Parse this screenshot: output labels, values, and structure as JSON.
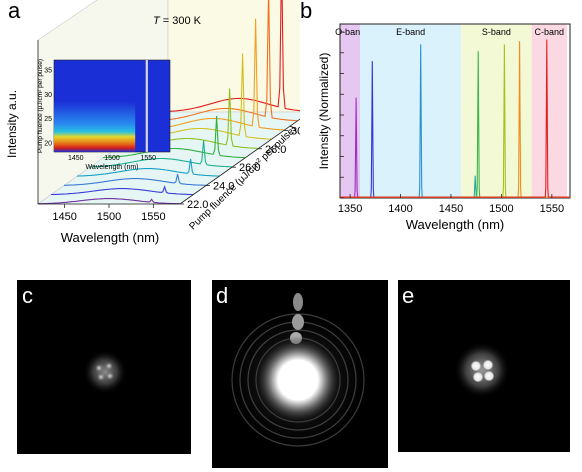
{
  "panels": {
    "a": {
      "letter": "a",
      "temperature_prefix": "T",
      "temperature_suffix": " = 300 K",
      "inset_y_ticks": [
        "35",
        "30",
        "25",
        "20"
      ],
      "inset_x_ticks": [
        "1450",
        "1500",
        "1550"
      ]
    },
    "b": {
      "letter": "b"
    },
    "c": {
      "letter": "c"
    },
    "d": {
      "letter": "d"
    },
    "e": {
      "letter": "e"
    }
  },
  "chart_data": [
    {
      "type": "line",
      "panel": "a",
      "title": "",
      "xlabel": "Wavelength (nm)",
      "ylabel": "Intensity a.u.",
      "zlabel": "Pump fluence (μJ/cm² per pulse)",
      "xlim": [
        1420,
        1580
      ],
      "x_ticks": [
        1450,
        1500,
        1550
      ],
      "z_ticks": [
        22.0,
        24.0,
        26.0,
        28.0,
        30.0,
        32.0
      ],
      "z_tick_labels": [
        "22.0",
        "24.0",
        "26.0",
        "28.0",
        "30.0",
        "32.0"
      ],
      "peak_wavelength": 1548,
      "series": [
        {
          "pump_fluence": 22.0,
          "peak_height": 0.02,
          "color": "#7030a0"
        },
        {
          "pump_fluence": 23.0,
          "peak_height": 0.04,
          "color": "#3b3bd8"
        },
        {
          "pump_fluence": 24.0,
          "peak_height": 0.06,
          "color": "#3a7bd5"
        },
        {
          "pump_fluence": 25.0,
          "peak_height": 0.1,
          "color": "#1aa0c8"
        },
        {
          "pump_fluence": 26.0,
          "peak_height": 0.16,
          "color": "#20b090"
        },
        {
          "pump_fluence": 27.0,
          "peak_height": 0.26,
          "color": "#30b040"
        },
        {
          "pump_fluence": 28.0,
          "peak_height": 0.38,
          "color": "#90c020"
        },
        {
          "pump_fluence": 29.0,
          "peak_height": 0.55,
          "color": "#d0c020"
        },
        {
          "pump_fluence": 30.0,
          "peak_height": 0.72,
          "color": "#f0a020"
        },
        {
          "pump_fluence": 31.0,
          "peak_height": 0.86,
          "color": "#f07020"
        },
        {
          "pump_fluence": 32.0,
          "peak_height": 1.0,
          "color": "#e02020"
        }
      ],
      "inset": {
        "type": "heatmap",
        "xlabel": "Wavelength (nm)",
        "ylabel": "Pump fluence (μJ/cm² per pulse)",
        "x_ticks": [
          1450,
          1500,
          1550
        ],
        "y_ticks": [
          20,
          25,
          30,
          35
        ],
        "xlim": [
          1420,
          1580
        ],
        "ylim": [
          18,
          37
        ],
        "lasing_line_wavelength": 1548
      }
    },
    {
      "type": "line",
      "panel": "b",
      "title": "",
      "xlabel": "Wavelength (nm)",
      "ylabel": "Intensity (Normalized)",
      "xlim": [
        1340,
        1568
      ],
      "x_ticks": [
        1350,
        1400,
        1450,
        1500,
        1550
      ],
      "bands": [
        {
          "name": "O-band",
          "start": 1340,
          "end": 1360,
          "color": "#e5c7f2"
        },
        {
          "name": "E-band",
          "start": 1360,
          "end": 1460,
          "color": "#d9f2fb"
        },
        {
          "name": "S-band",
          "start": 1460,
          "end": 1530,
          "color": "#f3f9d5"
        },
        {
          "name": "C-band",
          "start": 1530,
          "end": 1565,
          "color": "#fbd9e3"
        }
      ],
      "peaks": [
        {
          "wavelength": 1356,
          "value": 0.6,
          "color": "#9b30c0"
        },
        {
          "wavelength": 1372,
          "value": 0.82,
          "color": "#3535d5"
        },
        {
          "wavelength": 1420,
          "value": 0.92,
          "color": "#2a90d0"
        },
        {
          "wavelength": 1474,
          "value": 0.13,
          "color": "#2aaa9a"
        },
        {
          "wavelength": 1477,
          "value": 0.88,
          "color": "#3bb64a"
        },
        {
          "wavelength": 1503,
          "value": 0.92,
          "color": "#a8c020"
        },
        {
          "wavelength": 1518,
          "value": 0.94,
          "color": "#f08b20"
        },
        {
          "wavelength": 1545,
          "value": 0.95,
          "color": "#e02020"
        }
      ]
    }
  ]
}
